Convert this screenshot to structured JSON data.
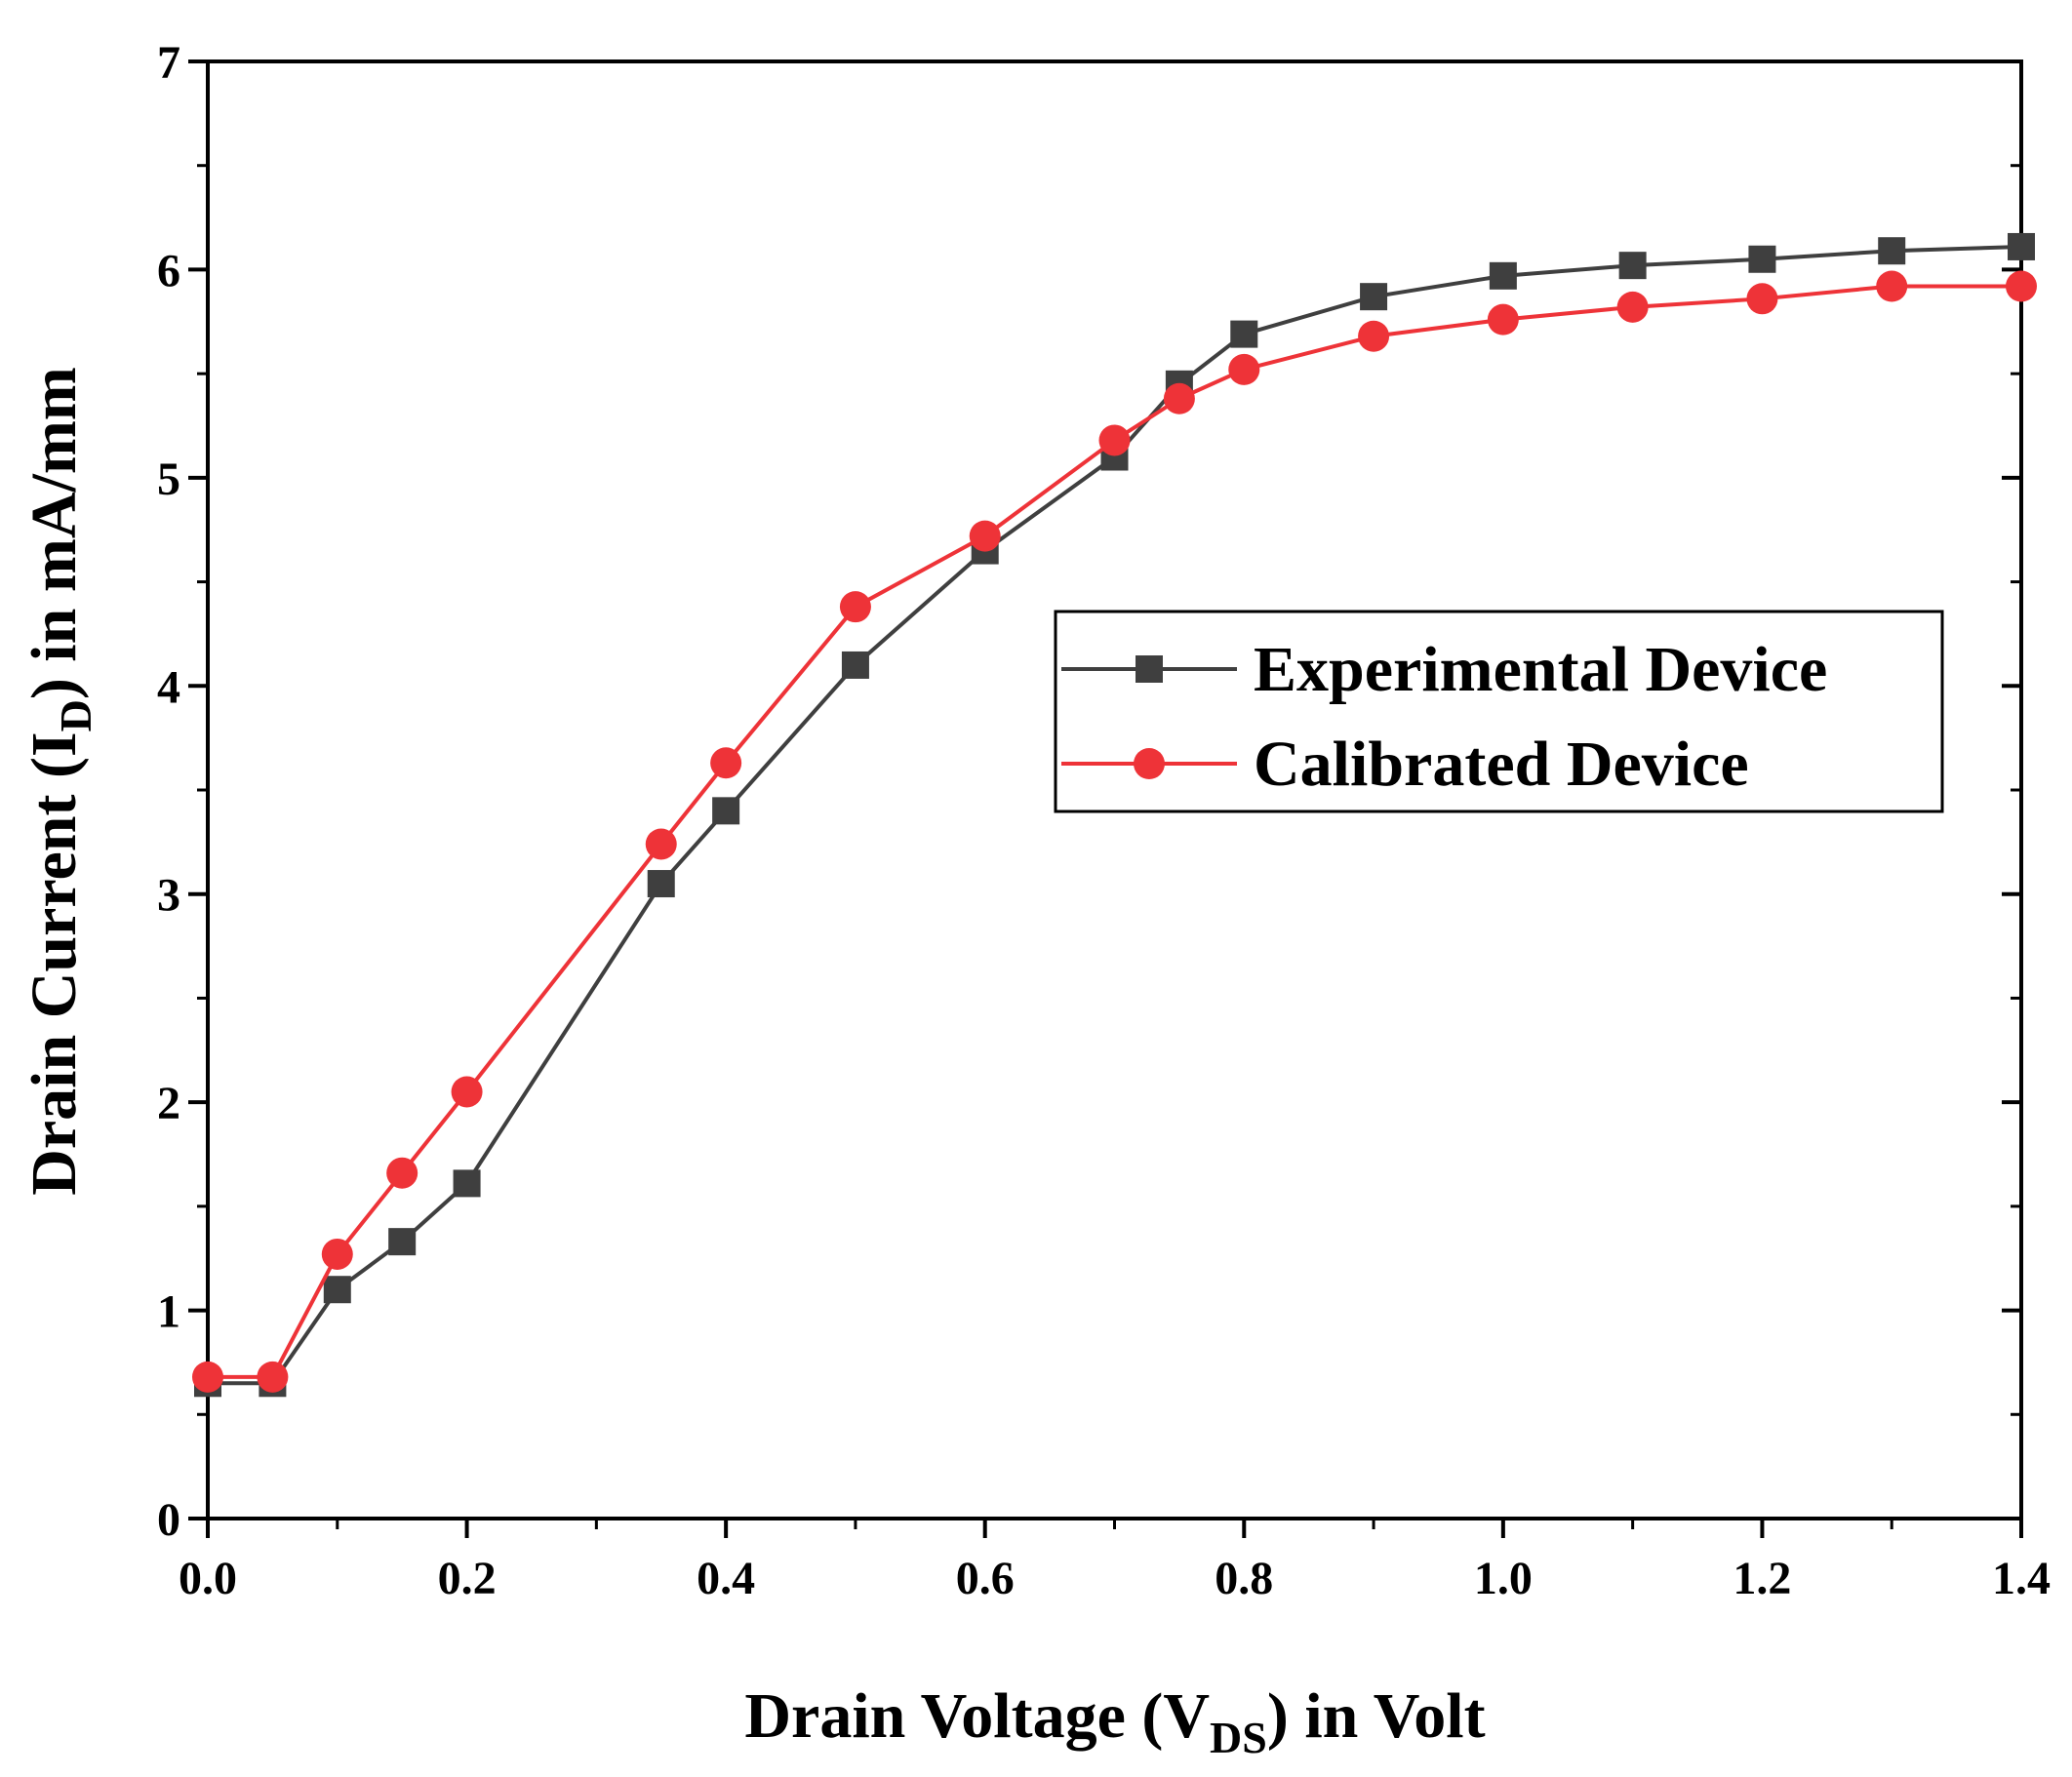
{
  "chart_data": {
    "type": "line",
    "xlabel": {
      "main": "Drain Voltage (V",
      "sub": "DS",
      "tail": ") in Volt"
    },
    "ylabel": {
      "main": "Drain Current (I",
      "sub": "D",
      "tail": ") in mA/mm"
    },
    "xlim": [
      0,
      1.4
    ],
    "ylim": [
      0,
      7
    ],
    "xticks": [
      0.0,
      0.2,
      0.4,
      0.6,
      0.8,
      1.0,
      1.2,
      1.4
    ],
    "xtick_labels": [
      "0.0",
      "0.2",
      "0.4",
      "0.6",
      "0.8",
      "1.0",
      "1.2",
      "1.4"
    ],
    "yticks": [
      0,
      1,
      2,
      3,
      4,
      5,
      6,
      7
    ],
    "ytick_labels": [
      "0",
      "1",
      "2",
      "3",
      "4",
      "5",
      "6",
      "7"
    ],
    "grid": false,
    "legend_position": "center-right",
    "series": [
      {
        "name": "Experimental Device",
        "color": "#3f3f3f",
        "marker": "square",
        "x": [
          0.0,
          0.05,
          0.1,
          0.15,
          0.2,
          0.35,
          0.4,
          0.5,
          0.6,
          0.7,
          0.75,
          0.8,
          0.9,
          1.0,
          1.1,
          1.2,
          1.3,
          1.4
        ],
        "y": [
          0.65,
          0.65,
          1.1,
          1.33,
          1.61,
          3.05,
          3.4,
          4.1,
          4.65,
          5.1,
          5.45,
          5.69,
          5.87,
          5.97,
          6.02,
          6.05,
          6.09,
          6.11
        ]
      },
      {
        "name": "Calibrated Device",
        "color": "#ee3338",
        "marker": "circle",
        "x": [
          0.0,
          0.05,
          0.1,
          0.15,
          0.2,
          0.35,
          0.4,
          0.5,
          0.6,
          0.7,
          0.75,
          0.8,
          0.9,
          1.0,
          1.1,
          1.2,
          1.3,
          1.4
        ],
        "y": [
          0.68,
          0.68,
          1.27,
          1.66,
          2.05,
          3.24,
          3.63,
          4.38,
          4.72,
          5.18,
          5.38,
          5.52,
          5.68,
          5.76,
          5.82,
          5.86,
          5.92,
          5.92
        ]
      }
    ]
  }
}
